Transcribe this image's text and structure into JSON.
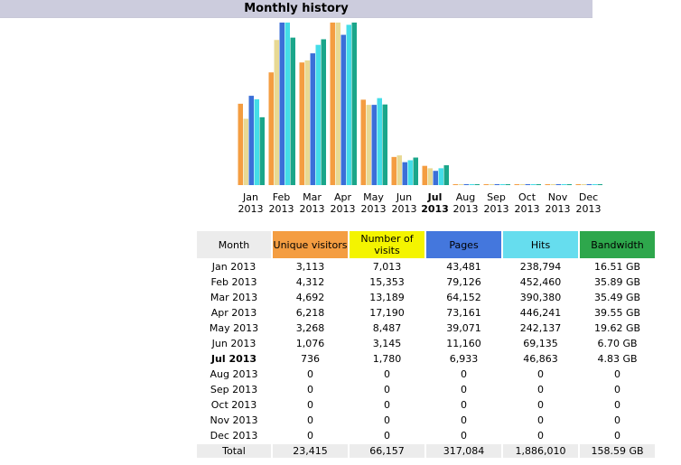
{
  "header": {
    "title": "Monthly history"
  },
  "colors": {
    "unique": "#f49d41",
    "visits": "#f4f400",
    "pages": "#4477dd",
    "hits": "#66ddee",
    "bandwidth": "#2ea74c",
    "header_bg": "#ccccdd"
  },
  "table": {
    "headers": [
      "Month",
      "Unique visitors",
      "Number of visits",
      "Pages",
      "Hits",
      "Bandwidth"
    ],
    "rows": [
      [
        "Jan 2013",
        "3,113",
        "7,013",
        "43,481",
        "238,794",
        "16.51 GB"
      ],
      [
        "Feb 2013",
        "4,312",
        "15,353",
        "79,126",
        "452,460",
        "35.89 GB"
      ],
      [
        "Mar 2013",
        "4,692",
        "13,189",
        "64,152",
        "390,380",
        "35.49 GB"
      ],
      [
        "Apr 2013",
        "6,218",
        "17,190",
        "73,161",
        "446,241",
        "39.55 GB"
      ],
      [
        "May 2013",
        "3,268",
        "8,487",
        "39,071",
        "242,137",
        "19.62 GB"
      ],
      [
        "Jun 2013",
        "1,076",
        "3,145",
        "11,160",
        "69,135",
        "6.70 GB"
      ],
      [
        "Jul 2013",
        "736",
        "1,780",
        "6,933",
        "46,863",
        "4.83 GB"
      ],
      [
        "Aug 2013",
        "0",
        "0",
        "0",
        "0",
        "0"
      ],
      [
        "Sep 2013",
        "0",
        "0",
        "0",
        "0",
        "0"
      ],
      [
        "Oct 2013",
        "0",
        "0",
        "0",
        "0",
        "0"
      ],
      [
        "Nov 2013",
        "0",
        "0",
        "0",
        "0",
        "0"
      ],
      [
        "Dec 2013",
        "0",
        "0",
        "0",
        "0",
        "0"
      ]
    ],
    "total": [
      "Total",
      "23,415",
      "66,157",
      "317,084",
      "1,886,010",
      "158.59 GB"
    ]
  },
  "chart_data": {
    "type": "bar",
    "categories": [
      "Jan",
      "Feb",
      "Mar",
      "Apr",
      "May",
      "Jun",
      "Jul",
      "Aug",
      "Sep",
      "Oct",
      "Nov",
      "Dec"
    ],
    "years": [
      "2013",
      "2013",
      "2013",
      "2013",
      "2013",
      "2013",
      "2013",
      "2013",
      "2013",
      "2013",
      "2013",
      "2013"
    ],
    "current_month": "Jul",
    "series": [
      {
        "name": "Unique visitors",
        "color": "#f49d41",
        "values": [
          3113,
          4312,
          4692,
          6218,
          3268,
          1076,
          736,
          0,
          0,
          0,
          0,
          0
        ]
      },
      {
        "name": "Number of visits",
        "color": "#e8d994",
        "values": [
          7013,
          15353,
          13189,
          17190,
          8487,
          3145,
          1780,
          0,
          0,
          0,
          0,
          0
        ]
      },
      {
        "name": "Pages",
        "color": "#3b6fd8",
        "values": [
          43481,
          79126,
          64152,
          73161,
          39071,
          11160,
          6933,
          0,
          0,
          0,
          0,
          0
        ]
      },
      {
        "name": "Hits",
        "color": "#44dde8",
        "values": [
          238794,
          452460,
          390380,
          446241,
          242137,
          69135,
          46863,
          0,
          0,
          0,
          0,
          0
        ]
      },
      {
        "name": "Bandwidth (GB)",
        "color": "#1aa68a",
        "values": [
          16.51,
          35.89,
          35.49,
          39.55,
          19.62,
          6.7,
          4.83,
          0,
          0,
          0,
          0,
          0
        ]
      }
    ]
  }
}
